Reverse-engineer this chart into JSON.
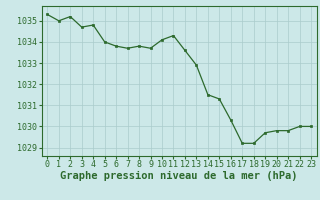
{
  "x": [
    0,
    1,
    2,
    3,
    4,
    5,
    6,
    7,
    8,
    9,
    10,
    11,
    12,
    13,
    14,
    15,
    16,
    17,
    18,
    19,
    20,
    21,
    22,
    23
  ],
  "y": [
    1035.3,
    1035.0,
    1035.2,
    1034.7,
    1034.8,
    1034.0,
    1033.8,
    1033.7,
    1033.8,
    1033.7,
    1034.1,
    1034.3,
    1033.6,
    1032.9,
    1031.5,
    1031.3,
    1030.3,
    1029.2,
    1029.2,
    1029.7,
    1029.8,
    1029.8,
    1030.0,
    1030.0
  ],
  "line_color": "#2d6a2d",
  "marker_color": "#2d6a2d",
  "bg_color": "#cce8e8",
  "grid_color": "#aacccc",
  "title": "Graphe pression niveau de la mer (hPa)",
  "ylabel_ticks": [
    1029,
    1030,
    1031,
    1032,
    1033,
    1034,
    1035
  ],
  "xticks": [
    0,
    1,
    2,
    3,
    4,
    5,
    6,
    7,
    8,
    9,
    10,
    11,
    12,
    13,
    14,
    15,
    16,
    17,
    18,
    19,
    20,
    21,
    22,
    23
  ],
  "xlim": [
    -0.5,
    23.5
  ],
  "ylim": [
    1028.6,
    1035.7
  ],
  "title_fontsize": 7.5,
  "tick_fontsize": 6.0,
  "title_color": "#2d6a2d",
  "tick_color": "#2d6a2d",
  "spine_color": "#2d6a2d"
}
